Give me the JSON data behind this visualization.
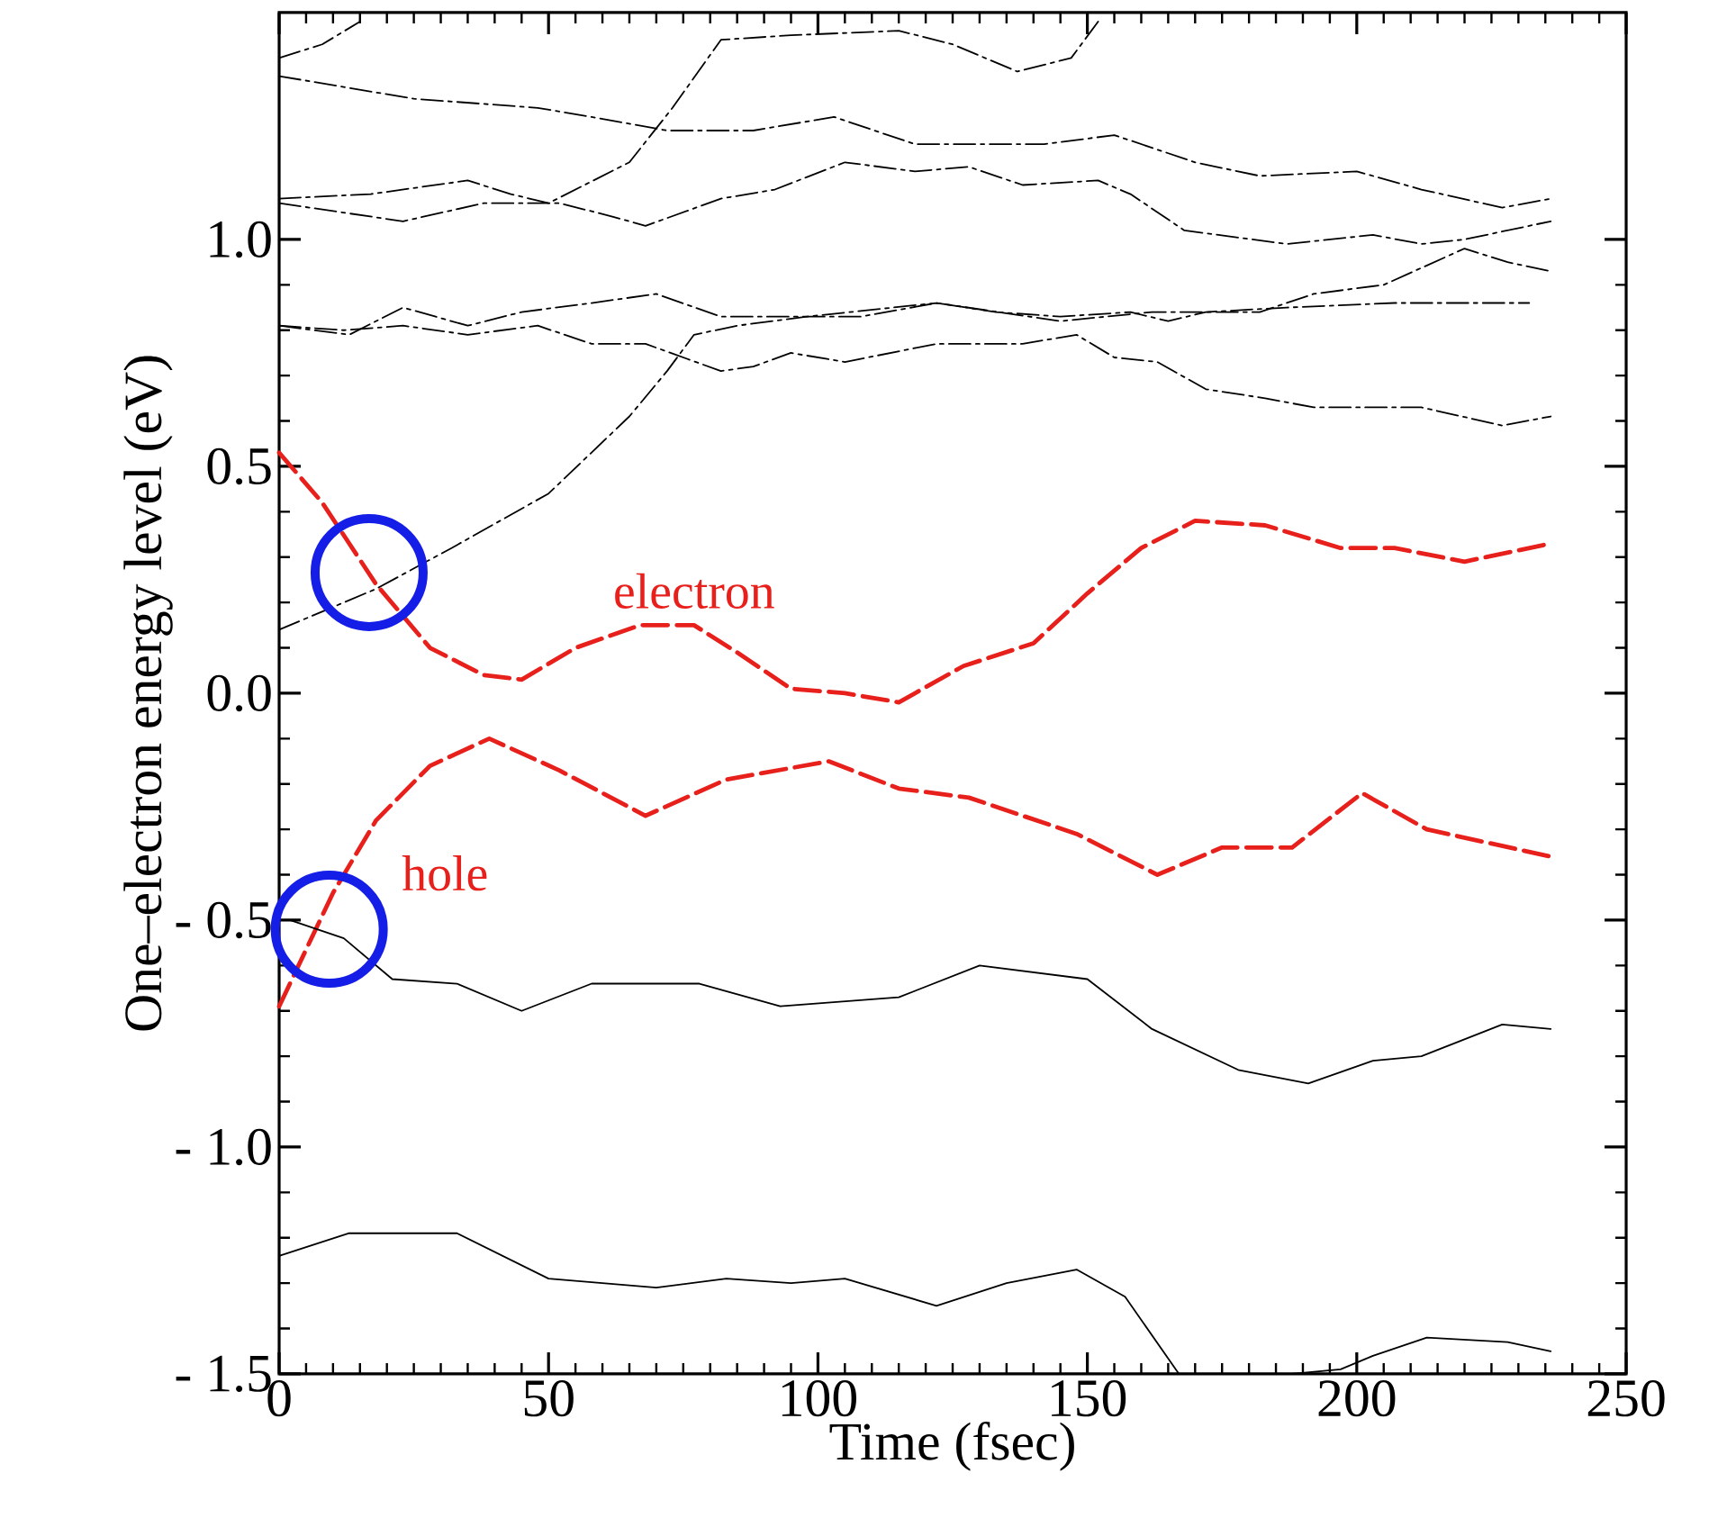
{
  "chart_data": {
    "type": "line",
    "xlabel": "Time (fsec)",
    "ylabel": "One–electron energy level (eV)",
    "xlim": [
      0,
      250
    ],
    "ylim": [
      -1.5,
      1.5
    ],
    "xticks": [
      0,
      50,
      100,
      150,
      200,
      250
    ],
    "yticks": [
      {
        "value": -1.5,
        "label": "- 1.5"
      },
      {
        "value": -1.0,
        "label": "- 1.0"
      },
      {
        "value": -0.5,
        "label": "- 0.5"
      },
      {
        "value": 0,
        "label": "0.0"
      },
      {
        "value": 0.5,
        "label": "0.5"
      },
      {
        "value": 1.0,
        "label": "1.0"
      }
    ],
    "series": [
      {
        "name": "electron",
        "color": "#e8201c",
        "line_style": "dashed",
        "x": [
          0,
          8,
          18,
          28,
          38,
          45,
          55,
          67,
          77,
          85,
          95,
          105,
          115,
          127,
          140,
          150,
          160,
          170,
          183,
          197,
          207,
          220,
          236
        ],
        "values": [
          0.53,
          0.42,
          0.24,
          0.1,
          0.04,
          0.03,
          0.1,
          0.15,
          0.15,
          0.09,
          0.01,
          0.0,
          -0.02,
          0.06,
          0.11,
          0.22,
          0.32,
          0.38,
          0.37,
          0.32,
          0.32,
          0.29,
          0.33
        ]
      },
      {
        "name": "hole",
        "color": "#e8201c",
        "line_style": "dashed",
        "x": [
          0,
          10,
          18,
          28,
          39,
          52,
          68,
          83,
          102,
          115,
          128,
          148,
          163,
          175,
          188,
          201,
          213,
          236
        ],
        "values": [
          -0.69,
          -0.44,
          -0.28,
          -0.16,
          -0.1,
          -0.17,
          -0.27,
          -0.19,
          -0.15,
          -0.21,
          -0.23,
          -0.31,
          -0.4,
          -0.34,
          -0.34,
          -0.22,
          -0.3,
          -0.36
        ]
      },
      {
        "color": "#000000",
        "line_style": "dashed",
        "x": [
          0,
          8,
          15
        ],
        "values": [
          1.4,
          1.43,
          1.48
        ]
      },
      {
        "color": "#000000",
        "line_style": "dashed",
        "x": [
          0,
          25,
          48,
          58,
          72,
          88,
          103,
          118,
          142,
          155,
          170,
          182,
          200,
          212,
          227,
          236
        ],
        "values": [
          1.36,
          1.31,
          1.29,
          1.27,
          1.24,
          1.24,
          1.27,
          1.21,
          1.21,
          1.23,
          1.17,
          1.14,
          1.15,
          1.11,
          1.07,
          1.09
        ]
      },
      {
        "color": "#000000",
        "line_style": "dashed",
        "x": [
          0,
          17,
          35,
          43,
          50,
          65,
          73,
          82,
          95,
          115,
          125,
          137,
          147,
          152
        ],
        "values": [
          1.09,
          1.1,
          1.13,
          1.1,
          1.08,
          1.17,
          1.29,
          1.44,
          1.45,
          1.46,
          1.43,
          1.37,
          1.4,
          1.48
        ]
      },
      {
        "color": "#000000",
        "line_style": "dashed",
        "x": [
          0,
          23,
          38,
          52,
          62,
          68,
          82,
          92,
          105,
          118,
          128,
          138,
          152,
          158,
          168,
          187,
          203,
          212,
          220,
          236
        ],
        "values": [
          1.08,
          1.04,
          1.08,
          1.08,
          1.05,
          1.03,
          1.09,
          1.11,
          1.17,
          1.15,
          1.16,
          1.12,
          1.13,
          1.1,
          1.02,
          0.99,
          1.01,
          0.99,
          1.0,
          1.04
        ]
      },
      {
        "color": "#000000",
        "line_style": "dashed",
        "x": [
          0,
          18,
          32,
          50,
          65,
          72,
          77,
          85,
          98,
          122,
          145,
          162,
          182,
          192,
          205,
          220,
          228,
          236
        ],
        "values": [
          0.14,
          0.23,
          0.32,
          0.44,
          0.61,
          0.71,
          0.79,
          0.81,
          0.83,
          0.86,
          0.82,
          0.84,
          0.84,
          0.88,
          0.9,
          0.98,
          0.95,
          0.93
        ]
      },
      {
        "color": "#000000",
        "line_style": "dashed",
        "x": [
          0,
          13,
          23,
          35,
          45,
          58,
          70,
          82,
          95,
          108,
          122,
          133,
          145,
          158,
          165,
          172,
          187,
          207,
          232
        ],
        "values": [
          0.81,
          0.79,
          0.85,
          0.81,
          0.84,
          0.86,
          0.88,
          0.83,
          0.83,
          0.83,
          0.86,
          0.84,
          0.83,
          0.84,
          0.82,
          0.84,
          0.85,
          0.86,
          0.86
        ]
      },
      {
        "color": "#000000",
        "line_style": "dashed",
        "x": [
          0,
          12,
          23,
          35,
          48,
          58,
          68,
          82,
          88,
          95,
          105,
          122,
          138,
          148,
          155,
          163,
          172,
          183,
          192,
          212,
          227,
          236
        ],
        "values": [
          0.81,
          0.8,
          0.81,
          0.79,
          0.81,
          0.77,
          0.77,
          0.71,
          0.72,
          0.75,
          0.73,
          0.77,
          0.77,
          0.79,
          0.74,
          0.73,
          0.67,
          0.65,
          0.63,
          0.63,
          0.59,
          0.61
        ]
      },
      {
        "color": "#000000",
        "line_style": "solid",
        "x": [
          0,
          2,
          12,
          21,
          33,
          45,
          58,
          78,
          93,
          115,
          130,
          150,
          162,
          178,
          191,
          203,
          212,
          227,
          236
        ],
        "values": [
          -0.5,
          -0.5,
          -0.54,
          -0.63,
          -0.64,
          -0.7,
          -0.64,
          -0.64,
          -0.69,
          -0.67,
          -0.6,
          -0.63,
          -0.74,
          -0.83,
          -0.86,
          -0.81,
          -0.8,
          -0.73,
          -0.74
        ]
      },
      {
        "color": "#000000",
        "line_style": "solid",
        "x": [
          0,
          13,
          33,
          50,
          70,
          83,
          95,
          105,
          122,
          135,
          148,
          157,
          167
        ],
        "values": [
          -1.24,
          -1.19,
          -1.19,
          -1.29,
          -1.31,
          -1.29,
          -1.3,
          -1.29,
          -1.35,
          -1.3,
          -1.27,
          -1.33,
          -1.5
        ]
      },
      {
        "color": "#000000",
        "line_style": "solid",
        "x": [
          188,
          197,
          203,
          213,
          228,
          236
        ],
        "values": [
          -1.5,
          -1.49,
          -1.46,
          -1.42,
          -1.43,
          -1.45
        ]
      }
    ]
  }
}
